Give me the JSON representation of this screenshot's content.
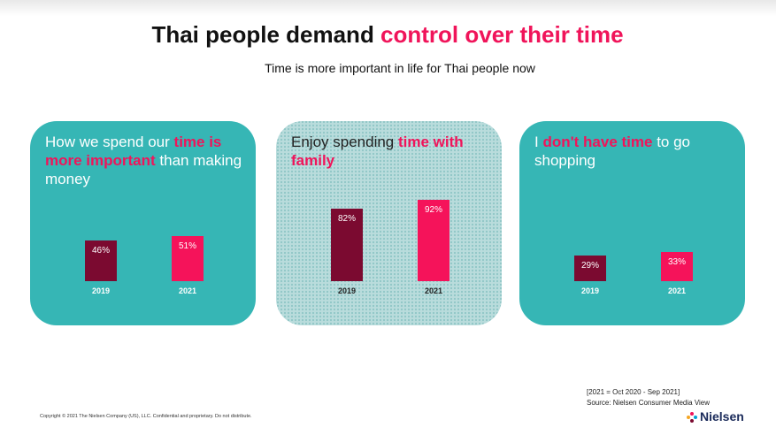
{
  "header": {
    "title_parts": [
      "Thai people demand ",
      "control over their time"
    ],
    "subtitle": "Time is more important in life for Thai people now"
  },
  "highlight_color": "#f0145a",
  "chart_data": [
    {
      "type": "bar",
      "title_parts": [
        "How we spend our ",
        "time is more important",
        " than making money"
      ],
      "categories": [
        "2019",
        "2021"
      ],
      "values": [
        46,
        51
      ],
      "value_labels": [
        "46%",
        "51%"
      ],
      "colors": [
        "#7b0a30",
        "#f5135a"
      ],
      "ylim": [
        0,
        100
      ]
    },
    {
      "type": "bar",
      "title_parts": [
        "Enjoy spending ",
        "time with family"
      ],
      "categories": [
        "2019",
        "2021"
      ],
      "values": [
        82,
        92
      ],
      "value_labels": [
        "82%",
        "92%"
      ],
      "colors": [
        "#7b0a30",
        "#f5135a"
      ],
      "ylim": [
        0,
        100
      ]
    },
    {
      "type": "bar",
      "title_parts": [
        "I ",
        "don't have time",
        " to go shopping"
      ],
      "categories": [
        "2019",
        "2021"
      ],
      "values": [
        29,
        33
      ],
      "value_labels": [
        "29%",
        "33%"
      ],
      "colors": [
        "#7b0a30",
        "#f5135a"
      ],
      "ylim": [
        0,
        100
      ]
    }
  ],
  "footer": {
    "note": "[2021 = Oct 2020 - Sep 2021]",
    "source": "Source:  Nielsen Consumer Media View",
    "copyright": "Copyright © 2021 The Nielsen Company (US), LLC. Confidential and proprietary. Do not distribute.",
    "logo": "Nielsen"
  }
}
